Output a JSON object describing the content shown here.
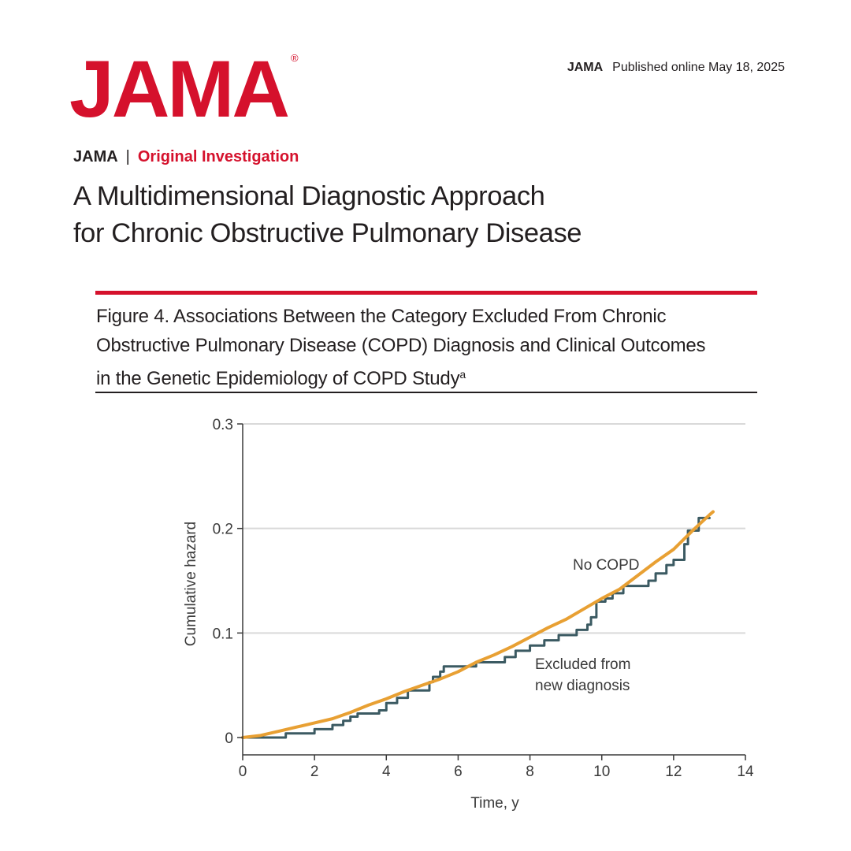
{
  "header": {
    "logo": "JAMA",
    "logo_mark": "®",
    "journal": "JAMA",
    "published": "Published online May 18, 2025"
  },
  "article": {
    "journal": "JAMA",
    "separator": "|",
    "type": "Original Investigation",
    "title_line1": "A Multidimensional Diagnostic Approach",
    "title_line2": "for Chronic Obstructive Pulmonary Disease"
  },
  "figure": {
    "title_line1": "Figure 4. Associations Between the Category Excluded From Chronic",
    "title_line2": "Obstructive Pulmonary Disease (COPD) Diagnosis and Clinical Outcomes",
    "title_line3": "in the Genetic Epidemiology of COPD Study",
    "footnote_mark": "a"
  },
  "colors": {
    "brand_red": "#d5112c",
    "no_copd": "#e8a033",
    "excluded": "#3b5a62",
    "grid": "#d9d9d9"
  },
  "chart_data": {
    "type": "line",
    "xlabel": "Time, y",
    "ylabel": "Cumulative hazard",
    "xlim": [
      0,
      14
    ],
    "ylim": [
      0,
      0.3
    ],
    "x_ticks": [
      0,
      2,
      4,
      6,
      8,
      10,
      12,
      14
    ],
    "x_tick_labels": [
      "0",
      "2",
      "4",
      "6",
      "8",
      "10",
      "12",
      "14"
    ],
    "y_ticks": [
      0,
      0.1,
      0.2,
      0.3
    ],
    "y_tick_labels": [
      "0",
      "0.1",
      "0.2",
      "0.3"
    ],
    "grid": "horizontal",
    "series": [
      {
        "name": "No COPD",
        "label": "No COPD",
        "step": false,
        "points": [
          [
            0,
            0
          ],
          [
            0.5,
            0.002
          ],
          [
            1.0,
            0.006
          ],
          [
            1.5,
            0.01
          ],
          [
            2.0,
            0.014
          ],
          [
            2.5,
            0.018
          ],
          [
            3.0,
            0.024
          ],
          [
            3.5,
            0.031
          ],
          [
            4.0,
            0.037
          ],
          [
            4.5,
            0.044
          ],
          [
            5.0,
            0.05
          ],
          [
            5.5,
            0.056
          ],
          [
            6.0,
            0.063
          ],
          [
            6.5,
            0.072
          ],
          [
            7.0,
            0.079
          ],
          [
            7.5,
            0.087
          ],
          [
            8.0,
            0.096
          ],
          [
            8.5,
            0.105
          ],
          [
            9.0,
            0.113
          ],
          [
            9.5,
            0.123
          ],
          [
            10.0,
            0.133
          ],
          [
            10.5,
            0.142
          ],
          [
            11.0,
            0.155
          ],
          [
            11.5,
            0.168
          ],
          [
            12.0,
            0.18
          ],
          [
            12.5,
            0.197
          ],
          [
            13.0,
            0.213
          ],
          [
            13.1,
            0.216
          ]
        ]
      },
      {
        "name": "Excluded from new diagnosis",
        "label_line1": "Excluded from",
        "label_line2": "new diagnosis",
        "step": true,
        "points": [
          [
            0,
            0
          ],
          [
            1.2,
            0.004
          ],
          [
            2.0,
            0.008
          ],
          [
            2.5,
            0.012
          ],
          [
            2.8,
            0.016
          ],
          [
            3.0,
            0.02
          ],
          [
            3.2,
            0.023
          ],
          [
            3.8,
            0.026
          ],
          [
            4.0,
            0.033
          ],
          [
            4.3,
            0.038
          ],
          [
            4.6,
            0.045
          ],
          [
            5.2,
            0.053
          ],
          [
            5.3,
            0.058
          ],
          [
            5.5,
            0.063
          ],
          [
            5.6,
            0.068
          ],
          [
            6.5,
            0.072
          ],
          [
            7.3,
            0.077
          ],
          [
            7.6,
            0.083
          ],
          [
            8.0,
            0.088
          ],
          [
            8.4,
            0.093
          ],
          [
            8.8,
            0.098
          ],
          [
            9.3,
            0.103
          ],
          [
            9.6,
            0.108
          ],
          [
            9.7,
            0.115
          ],
          [
            9.85,
            0.13
          ],
          [
            10.1,
            0.133
          ],
          [
            10.3,
            0.138
          ],
          [
            10.6,
            0.145
          ],
          [
            11.3,
            0.15
          ],
          [
            11.5,
            0.157
          ],
          [
            11.8,
            0.165
          ],
          [
            12.0,
            0.17
          ],
          [
            12.3,
            0.185
          ],
          [
            12.4,
            0.198
          ],
          [
            12.7,
            0.21
          ],
          [
            13.0,
            0.21
          ]
        ]
      }
    ]
  }
}
